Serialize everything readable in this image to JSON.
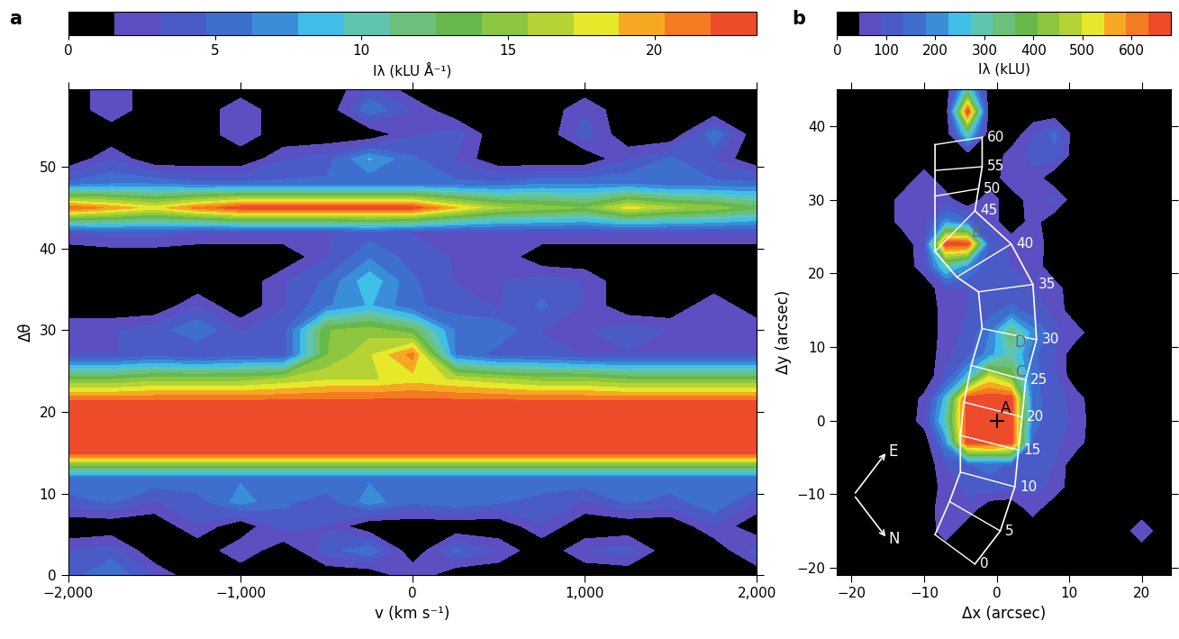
{
  "chart_data": [
    {
      "type": "heatmap",
      "label": "a",
      "xlabel": "v (km s⁻¹)",
      "ylabel": "Δθ",
      "x": [
        -2000,
        -1750,
        -1500,
        -1250,
        -1000,
        -750,
        -500,
        -250,
        0,
        250,
        500,
        750,
        1000,
        1250,
        1500,
        1750,
        2000
      ],
      "y": [
        0,
        3,
        6,
        9,
        12,
        15,
        18,
        21,
        24,
        27,
        30,
        33,
        36,
        39,
        42,
        45,
        48,
        51,
        54,
        57,
        60
      ],
      "cells": [
        [
          4,
          6,
          3,
          0,
          0,
          0,
          0,
          0,
          3,
          0,
          0,
          0,
          0,
          0,
          0,
          0,
          0
        ],
        [
          3,
          4,
          0,
          0,
          3,
          0,
          4,
          6,
          0,
          5,
          3,
          0,
          3,
          4,
          0,
          0,
          4
        ],
        [
          0,
          0,
          0,
          3,
          0,
          4,
          3,
          0,
          0,
          0,
          0,
          3,
          0,
          0,
          0,
          3,
          0
        ],
        [
          4,
          5,
          3,
          4,
          7,
          5,
          4,
          7,
          5,
          6,
          5,
          4,
          3,
          5,
          4,
          6,
          3
        ],
        [
          6,
          6,
          6,
          6,
          6,
          6,
          6,
          6,
          6,
          6,
          6,
          6,
          6,
          6,
          6,
          6,
          6
        ],
        [
          23,
          23,
          23,
          23,
          23,
          23,
          23,
          23,
          23,
          23,
          23,
          23,
          23,
          23,
          23,
          23,
          23
        ],
        [
          23,
          23,
          23,
          23,
          23,
          23,
          23,
          23,
          23,
          23,
          23,
          23,
          23,
          23,
          23,
          23,
          23
        ],
        [
          23,
          23,
          23,
          23,
          23,
          23,
          23,
          23,
          23,
          23,
          23,
          23,
          23,
          23,
          23,
          23,
          23
        ],
        [
          14,
          14,
          15,
          15,
          15,
          16,
          17,
          17,
          18,
          17,
          16,
          15,
          15,
          14,
          14,
          14,
          14
        ],
        [
          3,
          3,
          4,
          3,
          4,
          4,
          14,
          17,
          21,
          6,
          4,
          4,
          3,
          3,
          3,
          3,
          3
        ],
        [
          3,
          3,
          4,
          6,
          3,
          4,
          14,
          15,
          13,
          6,
          6,
          3,
          3,
          4,
          3,
          3,
          3
        ],
        [
          0,
          0,
          0,
          3,
          0,
          3,
          6,
          8,
          5,
          4,
          3,
          5,
          3,
          0,
          0,
          3,
          0
        ],
        [
          0,
          0,
          0,
          0,
          0,
          3,
          5,
          9,
          5,
          3,
          3,
          4,
          3,
          0,
          0,
          0,
          0
        ],
        [
          0,
          0,
          0,
          0,
          0,
          0,
          3,
          6,
          4,
          3,
          3,
          0,
          0,
          0,
          0,
          0,
          0
        ],
        [
          3,
          4,
          4,
          3,
          3,
          3,
          3,
          4,
          3,
          3,
          3,
          3,
          3,
          3,
          3,
          3,
          3
        ],
        [
          22,
          20,
          18,
          21,
          23,
          23,
          23,
          23,
          23,
          19,
          16,
          15,
          14,
          18,
          16,
          15,
          13
        ],
        [
          5,
          6,
          6,
          5,
          5,
          5,
          5,
          5,
          5,
          5,
          5,
          6,
          6,
          6,
          5,
          5,
          5
        ],
        [
          0,
          3,
          0,
          0,
          0,
          3,
          4,
          8,
          5,
          3,
          0,
          0,
          0,
          3,
          5,
          3,
          0
        ],
        [
          0,
          0,
          0,
          0,
          3,
          0,
          0,
          0,
          3,
          4,
          0,
          0,
          4,
          0,
          0,
          6,
          0
        ],
        [
          0,
          3,
          0,
          0,
          3,
          0,
          0,
          6,
          3,
          0,
          0,
          0,
          3,
          0,
          0,
          0,
          0
        ],
        [
          0,
          3,
          0,
          0,
          0,
          0,
          0,
          3,
          0,
          0,
          0,
          0,
          0,
          0,
          0,
          0,
          0
        ]
      ],
      "xlim": [
        -2000,
        2000
      ],
      "ylim": [
        0,
        59.5
      ],
      "xticks": [
        {
          "value": -2000,
          "label": "−2,000"
        },
        {
          "value": -1000,
          "label": "−1,000"
        },
        0,
        {
          "value": 1000,
          "label": "1,000"
        },
        {
          "value": 2000,
          "label": "2,000"
        }
      ],
      "yticks": [
        0,
        10,
        20,
        30,
        40,
        50
      ],
      "colorbar": {
        "label": "Iλ (kLU Å⁻¹)",
        "range": [
          0,
          23.5
        ],
        "ticks": [
          0,
          5,
          10,
          15,
          20
        ]
      }
    },
    {
      "type": "heatmap",
      "label": "b",
      "xlabel": "Δx (arcsec)",
      "ylabel": "Δy (arcsec)",
      "x": [
        -22,
        -19,
        -16,
        -13,
        -10,
        -7,
        -4,
        -1,
        2,
        5,
        8,
        11,
        14,
        17,
        20,
        23,
        26
      ],
      "y": [
        -21,
        -18,
        -15,
        -12,
        -9,
        -6,
        -3,
        0,
        3,
        6,
        9,
        12,
        15,
        18,
        21,
        24,
        27,
        30,
        33,
        36,
        39,
        42,
        45
      ],
      "cells": [
        [
          0,
          0,
          0,
          0,
          0,
          0,
          0,
          0,
          0,
          0,
          0,
          0,
          0,
          0,
          0,
          0,
          0
        ],
        [
          0,
          0,
          0,
          0,
          0,
          0,
          0,
          0,
          0,
          0,
          0,
          0,
          0,
          0,
          0,
          0,
          0
        ],
        [
          0,
          0,
          0,
          0,
          0,
          80,
          0,
          0,
          0,
          0,
          0,
          0,
          0,
          0,
          90,
          0,
          0
        ],
        [
          0,
          0,
          0,
          0,
          0,
          90,
          80,
          0,
          0,
          70,
          0,
          0,
          0,
          0,
          0,
          0,
          0
        ],
        [
          0,
          0,
          0,
          0,
          0,
          70,
          100,
          120,
          100,
          100,
          80,
          0,
          0,
          0,
          0,
          0,
          0
        ],
        [
          0,
          0,
          0,
          0,
          0,
          90,
          130,
          150,
          130,
          110,
          90,
          0,
          0,
          0,
          0,
          0,
          0
        ],
        [
          0,
          0,
          0,
          0,
          0,
          200,
          670,
          670,
          670,
          130,
          100,
          70,
          0,
          0,
          0,
          0,
          0
        ],
        [
          0,
          0,
          0,
          0,
          70,
          300,
          670,
          670,
          670,
          150,
          110,
          80,
          0,
          0,
          0,
          0,
          0
        ],
        [
          0,
          0,
          0,
          0,
          60,
          250,
          670,
          670,
          670,
          150,
          110,
          70,
          0,
          0,
          0,
          0,
          0
        ],
        [
          0,
          0,
          0,
          0,
          0,
          100,
          250,
          500,
          400,
          150,
          100,
          0,
          0,
          0,
          0,
          0,
          0
        ],
        [
          0,
          0,
          0,
          0,
          0,
          80,
          120,
          200,
          300,
          150,
          90,
          0,
          0,
          0,
          0,
          0,
          0
        ],
        [
          0,
          0,
          0,
          0,
          0,
          70,
          100,
          180,
          350,
          200,
          100,
          70,
          0,
          0,
          0,
          0,
          0
        ],
        [
          0,
          0,
          0,
          0,
          0,
          70,
          90,
          120,
          150,
          110,
          80,
          0,
          0,
          0,
          0,
          0,
          0
        ],
        [
          0,
          0,
          0,
          0,
          0,
          90,
          90,
          100,
          100,
          90,
          70,
          0,
          0,
          0,
          0,
          0,
          0
        ],
        [
          0,
          0,
          0,
          0,
          80,
          300,
          200,
          100,
          90,
          80,
          0,
          0,
          0,
          0,
          0,
          0,
          0
        ],
        [
          0,
          0,
          0,
          0,
          90,
          670,
          670,
          120,
          80,
          90,
          0,
          0,
          0,
          0,
          0,
          0,
          0
        ],
        [
          0,
          0,
          0,
          70,
          80,
          200,
          150,
          80,
          0,
          70,
          0,
          0,
          0,
          0,
          0,
          0,
          0
        ],
        [
          0,
          0,
          0,
          70,
          80,
          70,
          0,
          80,
          0,
          80,
          100,
          0,
          0,
          0,
          0,
          0,
          0
        ],
        [
          0,
          0,
          0,
          0,
          70,
          0,
          0,
          0,
          90,
          80,
          0,
          0,
          0,
          0,
          0,
          0,
          0
        ],
        [
          0,
          0,
          0,
          0,
          0,
          0,
          0,
          0,
          70,
          100,
          120,
          0,
          0,
          0,
          0,
          0,
          0
        ],
        [
          0,
          0,
          0,
          0,
          0,
          0,
          300,
          0,
          0,
          90,
          150,
          0,
          0,
          0,
          0,
          0,
          0
        ],
        [
          0,
          0,
          0,
          0,
          0,
          0,
          670,
          0,
          0,
          0,
          0,
          0,
          0,
          0,
          0,
          0,
          0
        ],
        [
          0,
          0,
          0,
          0,
          0,
          0,
          300,
          0,
          0,
          0,
          0,
          0,
          0,
          0,
          0,
          0,
          0
        ]
      ],
      "xlim": [
        -22,
        24
      ],
      "ylim": [
        -21,
        45
      ],
      "xticks": [
        {
          "value": -20,
          "label": "−20"
        },
        {
          "value": -10,
          "label": "−10"
        },
        0,
        10,
        20
      ],
      "yticks": [
        {
          "value": -20,
          "label": "−20"
        },
        {
          "value": -10,
          "label": "−10"
        },
        0,
        10,
        20,
        30,
        40
      ],
      "colorbar": {
        "label": "Iλ (kLU)",
        "range": [
          0,
          680
        ],
        "ticks": [
          0,
          100,
          200,
          300,
          400,
          500,
          600
        ]
      },
      "slit": [
        {
          "label": 0,
          "x1": -8.5,
          "y1": -15.5,
          "x2": -3.0,
          "y2": -19.5
        },
        {
          "label": 5,
          "x1": -6.5,
          "y1": -11.0,
          "x2": 0.5,
          "y2": -15.0
        },
        {
          "label": 10,
          "x1": -5.0,
          "y1": -7.0,
          "x2": 2.5,
          "y2": -9.0
        },
        {
          "label": 15,
          "x1": -5.0,
          "y1": -2.0,
          "x2": 3.0,
          "y2": -4.0
        },
        {
          "label": 20,
          "x1": -4.5,
          "y1": 2.5,
          "x2": 3.5,
          "y2": 0.5
        },
        {
          "label": 25,
          "x1": -3.5,
          "y1": 7.5,
          "x2": 4.0,
          "y2": 5.5
        },
        {
          "label": 30,
          "x1": -2.0,
          "y1": 12.5,
          "x2": 5.5,
          "y2": 11.0
        },
        {
          "label": 35,
          "x1": -2.5,
          "y1": 17.5,
          "x2": 5.0,
          "y2": 18.5
        },
        {
          "label": 40,
          "x1": -5.5,
          "y1": 19.5,
          "x2": 2.0,
          "y2": 24.0
        },
        {
          "label": 45,
          "x1": -8.5,
          "y1": 23.0,
          "x2": -3.0,
          "y2": 28.5
        },
        {
          "label": 50,
          "x1": -8.5,
          "y1": 30.5,
          "x2": -2.5,
          "y2": 31.5
        },
        {
          "label": 55,
          "x1": -8.5,
          "y1": 34.0,
          "x2": -2.0,
          "y2": 34.5
        },
        {
          "label": 60,
          "x1": -8.5,
          "y1": 37.5,
          "x2": -2.0,
          "y2": 38.5
        }
      ],
      "sources": [
        {
          "label": "A",
          "x": 0,
          "y": 0,
          "marker": "plus"
        },
        {
          "label": "B",
          "x": -4,
          "y": 24
        },
        {
          "label": "C",
          "x": 2,
          "y": 5
        },
        {
          "label": "D",
          "x": 2,
          "y": 9
        }
      ],
      "compass": {
        "east": "E",
        "north": "N"
      }
    }
  ]
}
